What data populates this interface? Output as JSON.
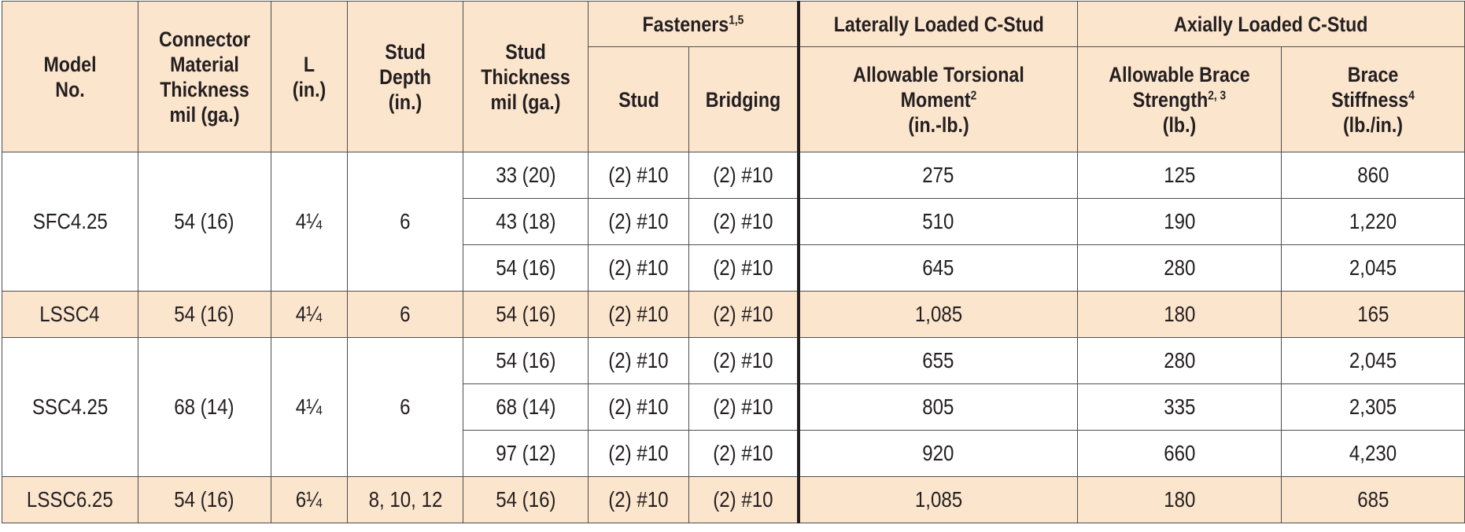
{
  "headers": {
    "model": "Model No.",
    "connector": "Connector Material Thickness mil (ga.)",
    "l": "L (in.)",
    "stud_depth": "Stud Depth (in.)",
    "stud_thickness": "Stud Thickness mil (ga.)",
    "fasteners": "Fasteners",
    "fasteners_sup": "1,5",
    "stud": "Stud",
    "bridging": "Bridging",
    "laterally": "Laterally Loaded C-Stud",
    "axially": "Axially Loaded C-Stud",
    "torsional": "Allowable Torsional Moment",
    "torsional_sup": "2",
    "torsional_unit": "(in.-lb.)",
    "brace_strength": "Allowable Brace Strength",
    "brace_strength_sup": "2, 3",
    "brace_strength_unit": "(lb.)",
    "brace_stiffness": "Brace Stiffness",
    "brace_stiffness_sup": "4",
    "brace_stiffness_unit": "(lb./in.)"
  },
  "groups": [
    {
      "model": "SFC4.25",
      "connector": "54 (16)",
      "l": "4¼",
      "depth": "6",
      "rows": [
        {
          "thickness": "33 (20)",
          "stud": "(2) #10",
          "bridging": "(2) #10",
          "torsional": "275",
          "strength": "125",
          "stiffness": "860"
        },
        {
          "thickness": "43 (18)",
          "stud": "(2) #10",
          "bridging": "(2) #10",
          "torsional": "510",
          "strength": "190",
          "stiffness": "1,220"
        },
        {
          "thickness": "54 (16)",
          "stud": "(2) #10",
          "bridging": "(2) #10",
          "torsional": "645",
          "strength": "280",
          "stiffness": "2,045"
        }
      ]
    },
    {
      "model": "LSSC4",
      "connector": "54 (16)",
      "l": "4¼",
      "depth": "6",
      "rows": [
        {
          "thickness": "54 (16)",
          "stud": "(2) #10",
          "bridging": "(2) #10",
          "torsional": "1,085",
          "strength": "180",
          "stiffness": "165"
        }
      ]
    },
    {
      "model": "SSC4.25",
      "connector": "68 (14)",
      "l": "4¼",
      "depth": "6",
      "rows": [
        {
          "thickness": "54 (16)",
          "stud": "(2) #10",
          "bridging": "(2) #10",
          "torsional": "655",
          "strength": "280",
          "stiffness": "2,045"
        },
        {
          "thickness": "68 (14)",
          "stud": "(2) #10",
          "bridging": "(2) #10",
          "torsional": "805",
          "strength": "335",
          "stiffness": "2,305"
        },
        {
          "thickness": "97 (12)",
          "stud": "(2) #10",
          "bridging": "(2) #10",
          "torsional": "920",
          "strength": "660",
          "stiffness": "4,230"
        }
      ]
    },
    {
      "model": "LSSC6.25",
      "connector": "54 (16)",
      "l": "6¼",
      "depth": "8, 10, 12",
      "rows": [
        {
          "thickness": "54 (16)",
          "stud": "(2) #10",
          "bridging": "(2) #10",
          "torsional": "1,085",
          "strength": "180",
          "stiffness": "685"
        }
      ]
    }
  ]
}
